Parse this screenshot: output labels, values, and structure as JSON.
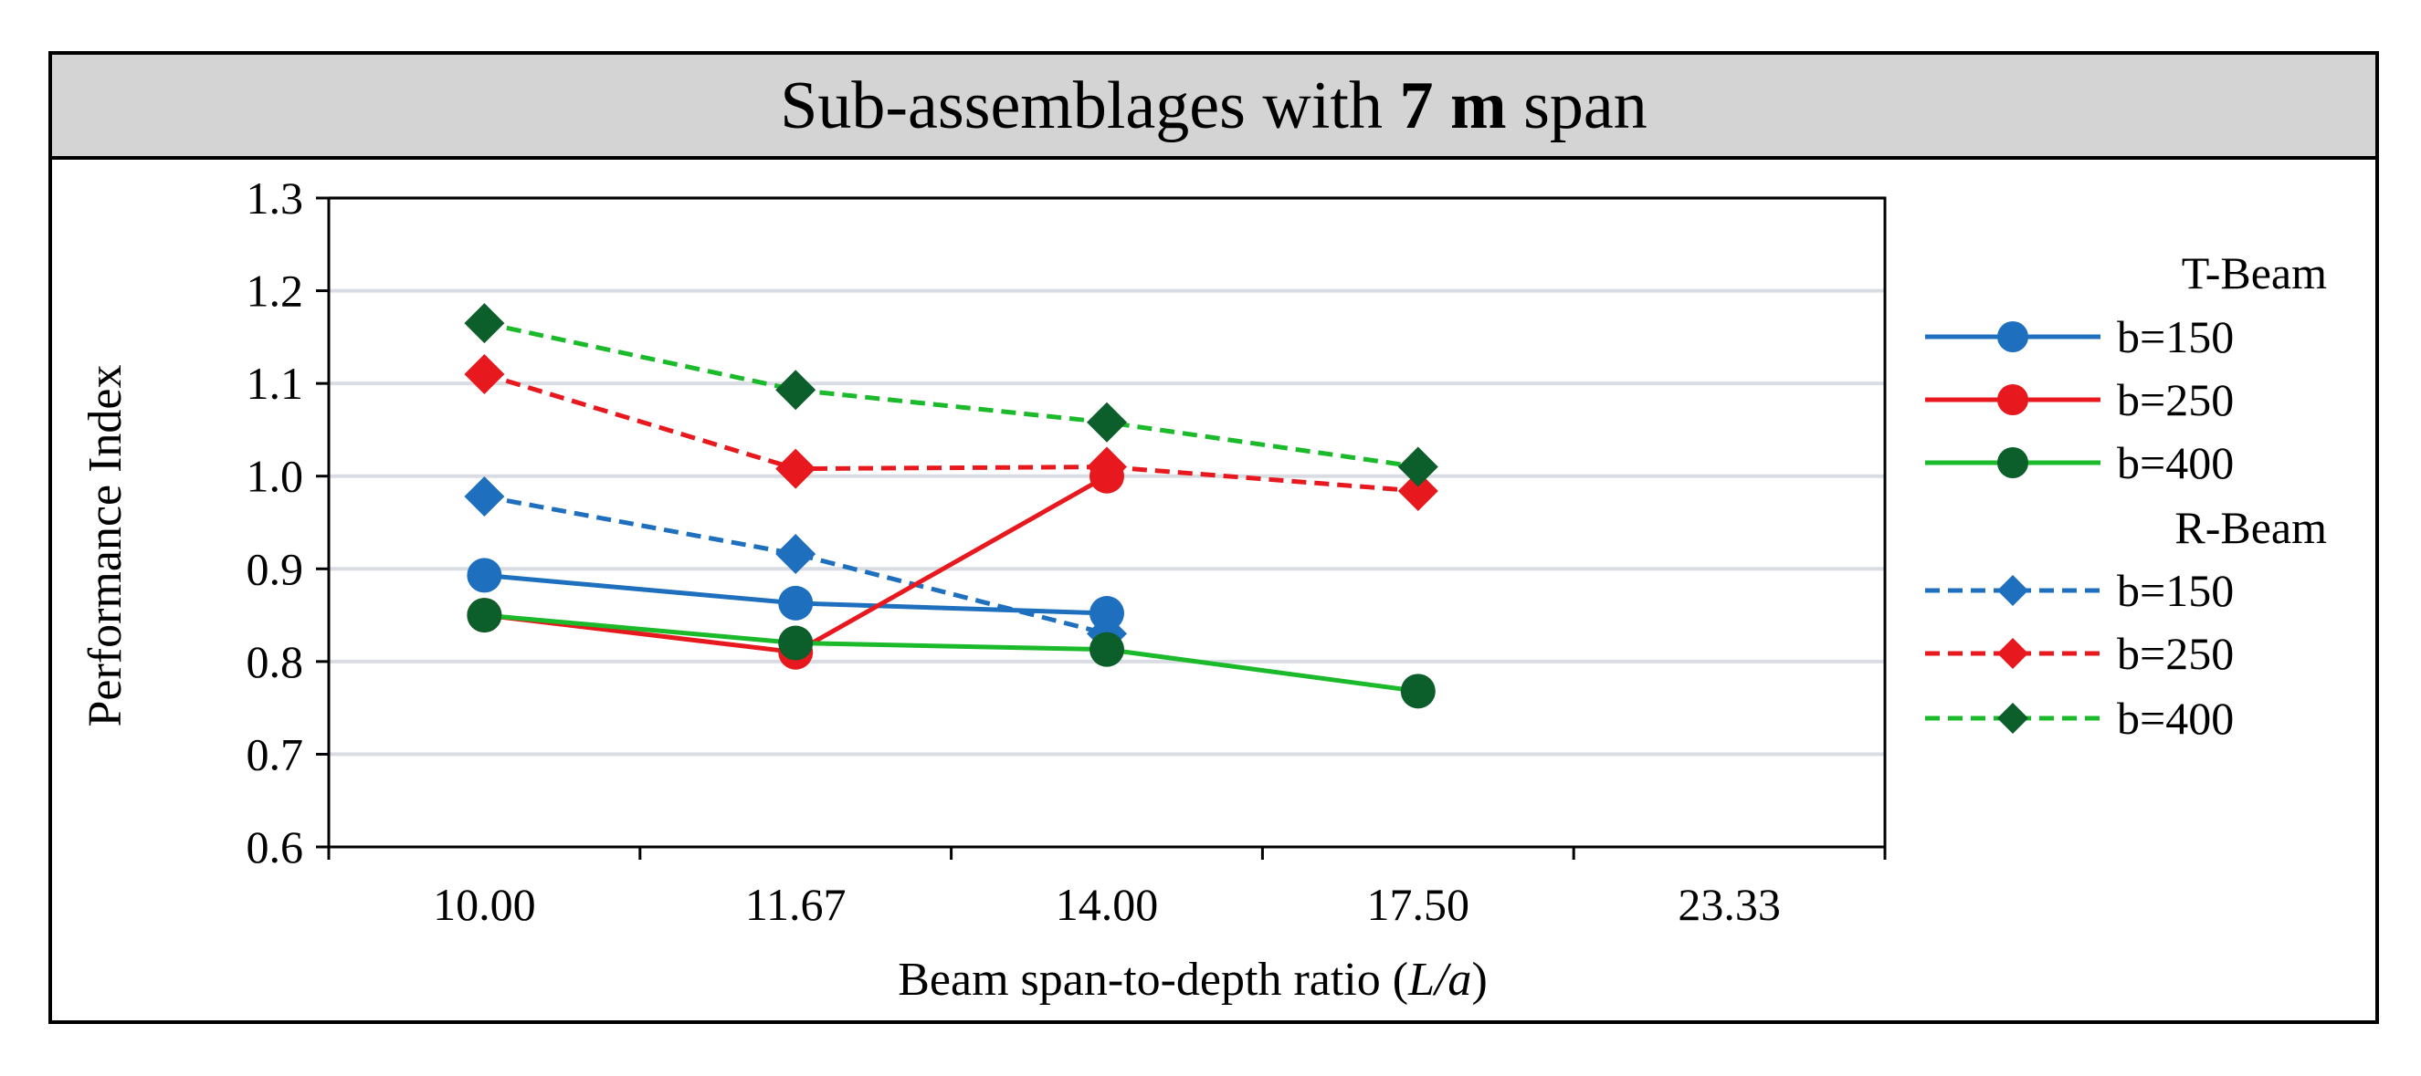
{
  "chart_data": {
    "type": "line",
    "title": {
      "prefix": "Sub-assemblages with ",
      "bold": "7 m",
      "suffix": " span"
    },
    "xlabel": {
      "prefix": "Beam span-to-depth ratio (",
      "italic": "L/a",
      "suffix": ")"
    },
    "ylabel": "Performance Index",
    "categories": [
      "10.00",
      "11.67",
      "14.00",
      "17.50",
      "23.33"
    ],
    "yticks": [
      "0.6",
      "0.7",
      "0.8",
      "0.9",
      "1.0",
      "1.1",
      "1.2",
      "1.3"
    ],
    "ylim": [
      0.6,
      1.3
    ],
    "grid": true,
    "legend_position": "right",
    "legend_groups": [
      {
        "title": "T-Beam",
        "series": [
          {
            "name": "b=150",
            "color": "#1f6fbf",
            "dash": "solid",
            "marker": "circle",
            "values": [
              0.893,
              0.863,
              0.852,
              null,
              null
            ]
          },
          {
            "name": "b=250",
            "color": "#e8191e",
            "dash": "solid",
            "marker": "circle",
            "values": [
              0.85,
              0.81,
              1.0,
              null,
              null
            ]
          },
          {
            "name": "b=400",
            "color": "#1aba2a",
            "marker_color": "#0c5e2a",
            "dash": "solid",
            "marker": "circle",
            "values": [
              0.85,
              0.82,
              0.813,
              0.768,
              null
            ]
          }
        ]
      },
      {
        "title": "R-Beam",
        "series": [
          {
            "name": "b=150",
            "color": "#1f6fbf",
            "dash": "dashed",
            "marker": "diamond",
            "values": [
              0.978,
              0.916,
              0.83,
              null,
              null
            ]
          },
          {
            "name": "b=250",
            "color": "#e8191e",
            "dash": "dashed",
            "marker": "diamond",
            "values": [
              1.11,
              1.008,
              1.01,
              0.984,
              null
            ]
          },
          {
            "name": "b=400",
            "color": "#1aba2a",
            "marker_color": "#0c5e2a",
            "dash": "dashed",
            "marker": "diamond",
            "values": [
              1.165,
              1.093,
              1.058,
              1.01,
              null
            ]
          }
        ]
      }
    ]
  }
}
